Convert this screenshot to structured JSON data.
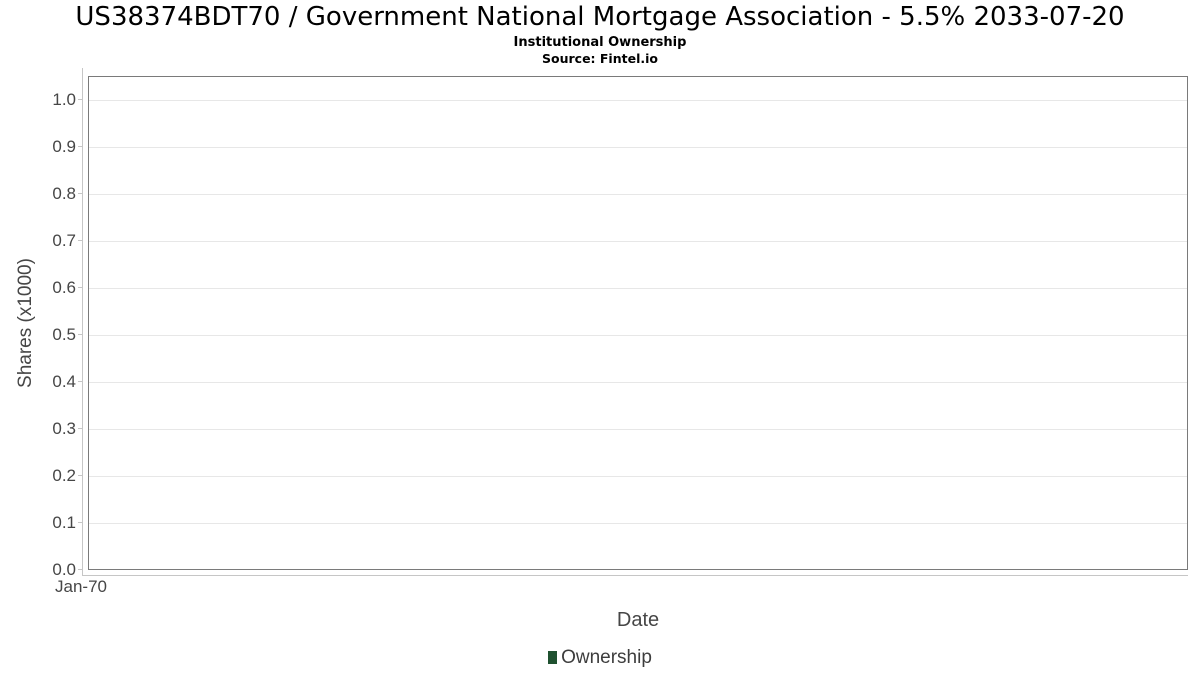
{
  "chart_data": {
    "type": "bar",
    "title": "US38374BDT70 / Government National Mortgage Association - 5.5% 2033-07-20",
    "subtitle": "Institutional Ownership",
    "source": "Source: Fintel.io",
    "xlabel": "Date",
    "ylabel": "Shares (x1000)",
    "x_ticks": [
      "Jan-70"
    ],
    "y_ticks": [
      0.0,
      0.1,
      0.2,
      0.3,
      0.4,
      0.5,
      0.6,
      0.7,
      0.8,
      0.9,
      1.0
    ],
    "ylim": [
      0,
      1.05
    ],
    "grid": true,
    "legend_position": "bottom",
    "series": [
      {
        "name": "Ownership",
        "color": "#1f5130",
        "values": []
      }
    ]
  },
  "colors": {
    "legend_swatch": "#1f5130",
    "plot_border": "#7a7a7a",
    "gridline": "#e7e7e7",
    "axis_line": "#c6c6c6",
    "tick_label": "#464646",
    "title_text": "#000000"
  }
}
